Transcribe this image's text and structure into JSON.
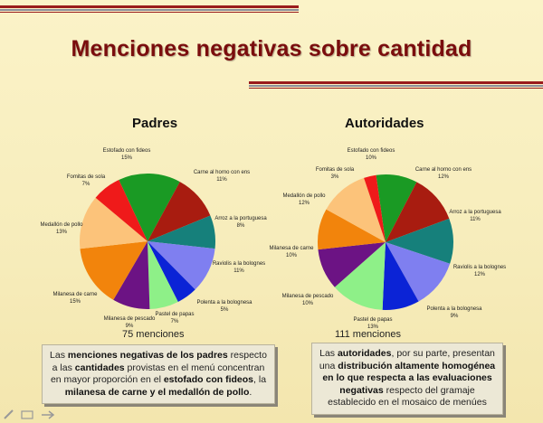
{
  "title": "Menciones negativas sobre cantidad",
  "chart_data": [
    {
      "type": "pie",
      "title": "Padres",
      "total_label": "75 menciones",
      "slices": [
        {
          "name": "Estofado con fideos",
          "pct_label": "15%",
          "value": 15,
          "color": "#1a9a24"
        },
        {
          "name": "Carne al horno con ens",
          "pct_label": "11%",
          "value": 11,
          "color": "#a81c10"
        },
        {
          "name": "Arroz a la portuguesa",
          "pct_label": "8%",
          "value": 8,
          "color": "#16807b"
        },
        {
          "name": "Raviolis a la bolognes",
          "pct_label": "11%",
          "value": 11,
          "color": "#7f7ff0"
        },
        {
          "name": "Polenta a la bolognesa",
          "pct_label": "5%",
          "value": 5,
          "color": "#0b23d6"
        },
        {
          "name": "Pastel de papas",
          "pct_label": "7%",
          "value": 7,
          "color": "#8ef088"
        },
        {
          "name": "Milanesa de pescado",
          "pct_label": "9%",
          "value": 9,
          "color": "#6c1384"
        },
        {
          "name": "Milanesa de carne",
          "pct_label": "15%",
          "value": 15,
          "color": "#f2840c"
        },
        {
          "name": "Medallón de pollo",
          "pct_label": "13%",
          "value": 13,
          "color": "#fcc37a"
        },
        {
          "name": "Fomitas de sola",
          "pct_label": "7%",
          "value": 7,
          "color": "#ef1a1a"
        }
      ]
    },
    {
      "type": "pie",
      "title": "Autoridades",
      "total_label": "111 menciones",
      "slices": [
        {
          "name": "Estofado con fideos",
          "pct_label": "10%",
          "value": 10,
          "color": "#1a9a24"
        },
        {
          "name": "Carne al horno con ens",
          "pct_label": "12%",
          "value": 12,
          "color": "#a81c10"
        },
        {
          "name": "Arroz a la portuguesa",
          "pct_label": "11%",
          "value": 11,
          "color": "#16807b"
        },
        {
          "name": "Raviolis a la bolognes",
          "pct_label": "12%",
          "value": 12,
          "color": "#7f7ff0"
        },
        {
          "name": "Polenta a la bolognesa",
          "pct_label": "9%",
          "value": 9,
          "color": "#0b23d6"
        },
        {
          "name": "Pastel de papas",
          "pct_label": "13%",
          "value": 13,
          "color": "#8ef088"
        },
        {
          "name": "Milanesa de pescado",
          "pct_label": "10%",
          "value": 10,
          "color": "#6c1384"
        },
        {
          "name": "Milanesa de carne",
          "pct_label": "10%",
          "value": 10,
          "color": "#f2840c"
        },
        {
          "name": "Medallón de pollo",
          "pct_label": "12%",
          "value": 12,
          "color": "#fcc37a"
        },
        {
          "name": "Fomitas de sola",
          "pct_label": "3%",
          "value": 3,
          "color": "#ef1a1a"
        }
      ]
    }
  ],
  "note_left": [
    {
      "t": "Las ",
      "b": false
    },
    {
      "t": "menciones negativas de los padres",
      "b": true
    },
    {
      "t": " respecto a las ",
      "b": false
    },
    {
      "t": "cantidades",
      "b": true
    },
    {
      "t": " provistas en el menú concentran en mayor proporción en el ",
      "b": false
    },
    {
      "t": "estofado con fideos",
      "b": true
    },
    {
      "t": ", la ",
      "b": false
    },
    {
      "t": "milanesa de carne y el medallón de pollo",
      "b": true
    },
    {
      "t": ".",
      "b": false
    }
  ],
  "note_right": [
    {
      "t": "Las ",
      "b": false
    },
    {
      "t": "autoridades",
      "b": true
    },
    {
      "t": ", por su parte, presentan una ",
      "b": false
    },
    {
      "t": "distribución altamente homogénea en lo que respecta a las evaluaciones negativas",
      "b": true
    },
    {
      "t": " respecto del gramaje establecido en el mosaico de menúes",
      "b": false
    }
  ]
}
